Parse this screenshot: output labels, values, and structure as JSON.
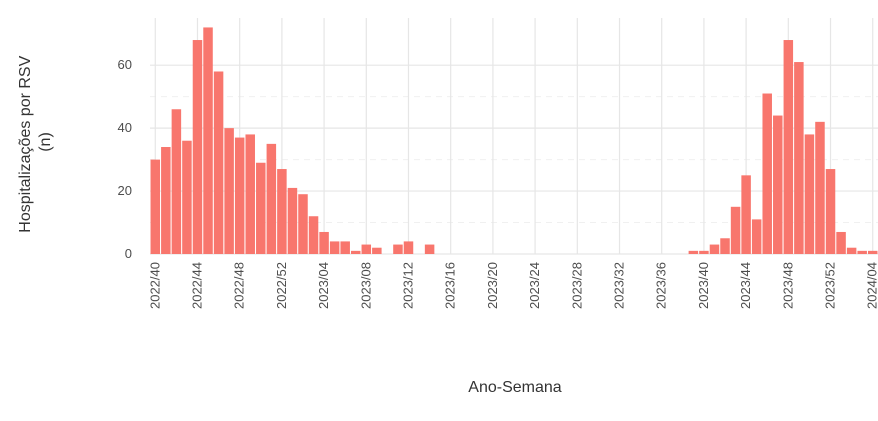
{
  "chart_data": {
    "type": "bar",
    "title": "",
    "xlabel": "Ano-Semana",
    "ylabel": "Hospitalizações por RSV (n)",
    "ylabel_lines": [
      "Hospitalizações por RSV",
      "(n)"
    ],
    "ylim": [
      0,
      75
    ],
    "yticks": [
      0,
      20,
      40,
      60
    ],
    "grid": true,
    "legend": "none",
    "bar_color": "#F8766D",
    "categories": [
      "2022/40",
      "2022/41",
      "2022/42",
      "2022/43",
      "2022/44",
      "2022/45",
      "2022/46",
      "2022/47",
      "2022/48",
      "2022/49",
      "2022/50",
      "2022/51",
      "2022/52",
      "2023/01",
      "2023/02",
      "2023/03",
      "2023/04",
      "2023/05",
      "2023/06",
      "2023/07",
      "2023/08",
      "2023/09",
      "2023/10",
      "2023/11",
      "2023/12",
      "2023/13",
      "2023/14",
      "2023/15",
      "2023/16",
      "2023/17",
      "2023/18",
      "2023/19",
      "2023/20",
      "2023/21",
      "2023/22",
      "2023/23",
      "2023/24",
      "2023/25",
      "2023/26",
      "2023/27",
      "2023/28",
      "2023/29",
      "2023/30",
      "2023/31",
      "2023/32",
      "2023/33",
      "2023/34",
      "2023/35",
      "2023/36",
      "2023/37",
      "2023/38",
      "2023/39",
      "2023/40",
      "2023/41",
      "2023/42",
      "2023/43",
      "2023/44",
      "2023/45",
      "2023/46",
      "2023/47",
      "2023/48",
      "2023/49",
      "2023/50",
      "2023/51",
      "2023/52",
      "2024/01",
      "2024/02",
      "2024/03",
      "2024/04"
    ],
    "values": [
      30,
      34,
      46,
      36,
      68,
      72,
      58,
      40,
      37,
      38,
      29,
      35,
      27,
      21,
      19,
      12,
      7,
      4,
      4,
      1,
      3,
      2,
      0,
      3,
      4,
      0,
      3,
      0,
      0,
      0,
      0,
      0,
      0,
      0,
      0,
      0,
      0,
      0,
      0,
      0,
      0,
      0,
      0,
      0,
      0,
      0,
      0,
      0,
      0,
      0,
      0,
      1,
      1,
      3,
      5,
      15,
      25,
      11,
      51,
      44,
      68,
      61,
      38,
      42,
      27,
      7,
      2,
      1,
      1
    ],
    "tick_labels": [
      "2022/40",
      "2022/44",
      "2022/48",
      "2022/52",
      "2023/04",
      "2023/08",
      "2023/12",
      "2023/16",
      "2023/20",
      "2023/24",
      "2023/28",
      "2023/32",
      "2023/36",
      "2023/40",
      "2023/44",
      "2023/48",
      "2023/52",
      "2024/04"
    ]
  }
}
